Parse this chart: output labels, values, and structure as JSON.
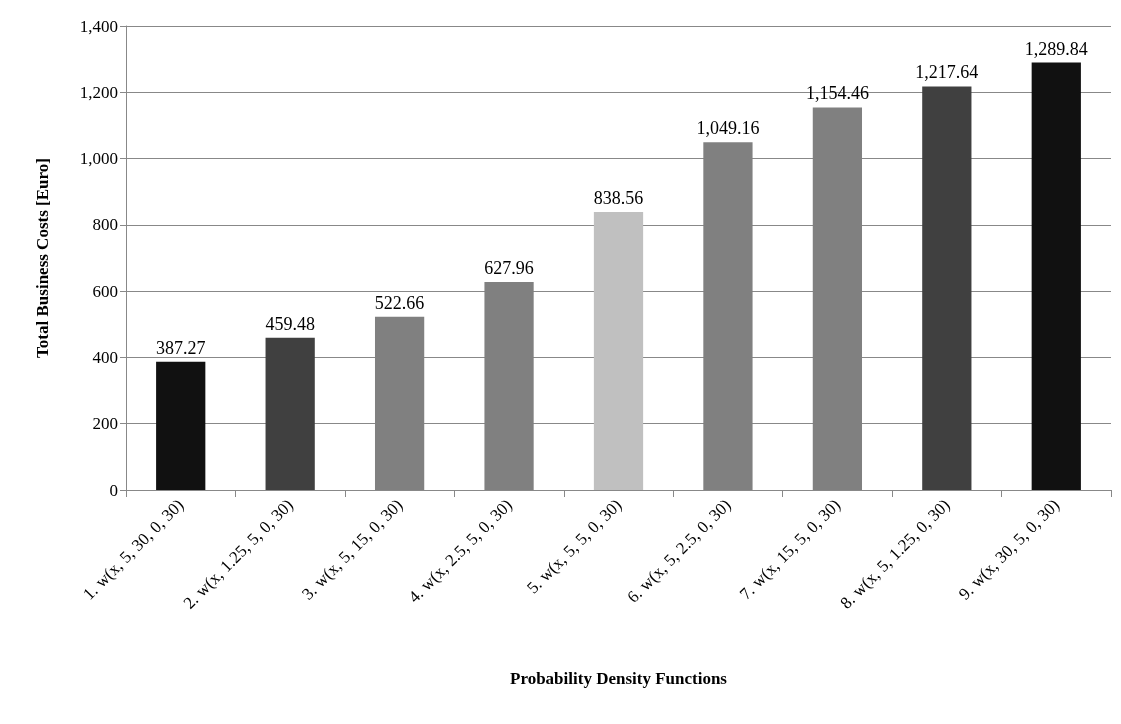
{
  "chart_data": {
    "type": "bar",
    "xlabel": "Probability Density Functions",
    "ylabel": "Total Business Costs [Euro]",
    "categories": [
      "1. w(x, 5, 30, 0, 30)",
      "2. w(x, 1.25, 5, 0, 30)",
      "3. w(x, 5, 15, 0, 30)",
      "4. w(x, 2.5, 5, 0, 30)",
      "5. w(x, 5, 5, 0, 30)",
      "6. w(x, 5, 2.5, 0, 30)",
      "7. w(x, 15, 5, 0, 30)",
      "8. w(x, 5, 1.25, 0, 30)",
      "9. w(x, 30, 5, 0, 30)"
    ],
    "values": [
      387.27,
      459.48,
      522.66,
      627.96,
      838.56,
      1049.16,
      1154.46,
      1217.64,
      1289.84
    ],
    "colors": [
      "#111111",
      "#404040",
      "#808080",
      "#808080",
      "#c0c0c0",
      "#808080",
      "#808080",
      "#404040",
      "#111111"
    ],
    "value_labels": [
      "387.27",
      "459.48",
      "522.66",
      "627.96",
      "838.56",
      "1,049.16",
      "1,154.46",
      "1,217.64",
      "1,289.84"
    ],
    "ylim": [
      0,
      1400
    ],
    "yticks": [
      {
        "value": 0,
        "label": "0"
      },
      {
        "value": 200,
        "label": "200"
      },
      {
        "value": 400,
        "label": "400"
      },
      {
        "value": 600,
        "label": "600"
      },
      {
        "value": 800,
        "label": "800"
      },
      {
        "value": 1000,
        "label": "1,000"
      },
      {
        "value": 1200,
        "label": "1,200"
      },
      {
        "value": 1400,
        "label": "1,400"
      }
    ],
    "grid": "y"
  }
}
